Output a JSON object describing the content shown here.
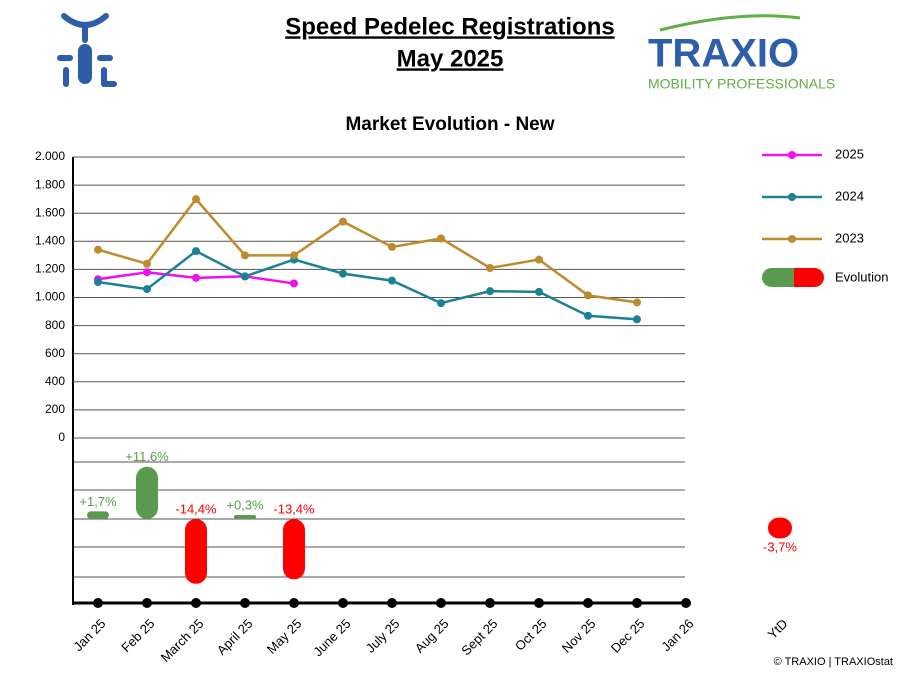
{
  "header": {
    "title": "Speed Pedelec Registrations",
    "subtitle": "May 2025",
    "logo_name": "TRAXIO",
    "logo_tagline": "MOBILITY PROFESSIONALS"
  },
  "footer": "© TRAXIO | TRAXIOstat",
  "chart_data": {
    "type": "line",
    "title": "Market Evolution - New",
    "categories": [
      "Jan 25",
      "Feb 25",
      "March 25",
      "April 25",
      "May 25",
      "June 25",
      "July 25",
      "Aug 25",
      "Sept 25",
      "Oct 25",
      "Nov 25",
      "Dec 25",
      "Jan 26"
    ],
    "series": [
      {
        "name": "2025",
        "color": "#ee11ee",
        "values": [
          1130,
          1180,
          1140,
          1150,
          1100,
          null,
          null,
          null,
          null,
          null,
          null,
          null,
          null
        ]
      },
      {
        "name": "2024",
        "color": "#1b8197",
        "values": [
          1110,
          1060,
          1330,
          1150,
          1270,
          1170,
          1120,
          960,
          1045,
          1040,
          870,
          845,
          null
        ]
      },
      {
        "name": "2023",
        "color": "#bf8a2c",
        "values": [
          1340,
          1240,
          1700,
          1300,
          1300,
          1540,
          1360,
          1420,
          1210,
          1270,
          1015,
          965,
          null
        ]
      }
    ],
    "ylim": [
      0,
      2000
    ],
    "yticks": [
      0,
      200,
      400,
      600,
      800,
      {
        "value": 1000,
        "label": "1.000"
      },
      {
        "value": 1200,
        "label": "1.200"
      },
      {
        "value": 1400,
        "label": "1.400"
      },
      {
        "value": 1600,
        "label": "1.600"
      },
      {
        "value": 1800,
        "label": "1.800"
      },
      {
        "value": 2000,
        "label": "2.000"
      }
    ],
    "grid": true,
    "evolution": {
      "name": "Evolution",
      "positive_color": "#5a9a4e",
      "negative_color": "#ff0000",
      "values": [
        1.7,
        11.6,
        -14.4,
        0.3,
        -13.4,
        null,
        null,
        null,
        null,
        null,
        null,
        null,
        null
      ],
      "value_labels": [
        "+1,7%",
        "+11,6%",
        "-14,4%",
        "+0,3%",
        "-13,4%",
        null,
        null,
        null,
        null,
        null,
        null,
        null,
        null
      ],
      "ytd_label": "YtD",
      "ytd_value": -3.7,
      "ytd_value_label": "-3,7%"
    }
  }
}
